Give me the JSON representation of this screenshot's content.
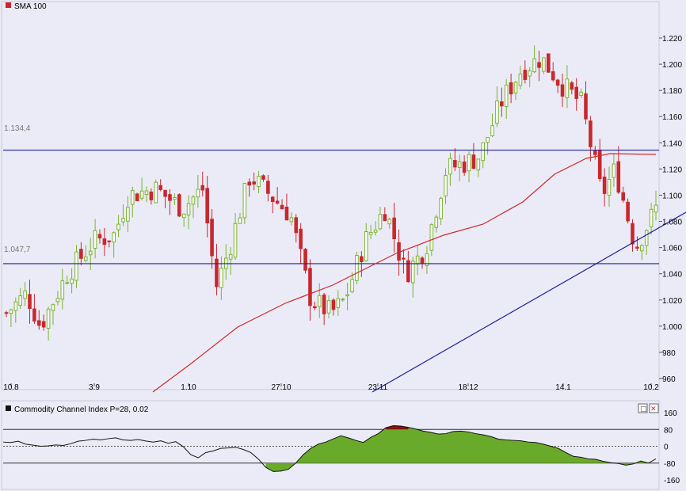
{
  "main_chart": {
    "legend_label": "SMA 100",
    "colors": {
      "up": "#7ab32e",
      "down": "#c8282d",
      "sma": "#cc2a2a",
      "hline": "#1f1f99",
      "trend": "#1f1f99",
      "background": "#ebebf7"
    }
  },
  "cci_panel": {
    "legend_label": "Commodity Channel Index P=28, 0.02",
    "expand_icon_label": "□",
    "close_icon_label": "✕",
    "ticks": [
      "160",
      "80",
      "0",
      "-80",
      "-160"
    ]
  },
  "chart_data": [
    {
      "type": "candlestick",
      "title": "",
      "series": [
        {
          "name": "SMA 100",
          "kind": "line"
        }
      ],
      "x_ticks": [
        "10.8",
        "3.9",
        "1.10",
        "27.10",
        "23.11",
        "18.12",
        "14.1",
        "10.2"
      ],
      "y_ticks": [
        "1.220",
        "1.200",
        "1.180",
        "1.160",
        "1.140",
        "1.120",
        "1.100",
        "1.080",
        "1.060",
        "1.040",
        "1.020",
        "1.000",
        "980",
        "960"
      ],
      "ylim": [
        0.96,
        1.225
      ],
      "horizontal_lines": [
        {
          "label": "1.134,4",
          "value": 1.1344
        },
        {
          "label": "1.047,7",
          "value": 1.0477
        }
      ],
      "trendline": {
        "from": {
          "x": "23.11",
          "y": 0.955
        },
        "to": {
          "x": "10.2",
          "y": 1.056
        }
      },
      "sma_range": [
        0.955,
        1.1027
      ],
      "candles_summary": {
        "count": 140,
        "first_close": 1.01,
        "min_low": 0.976,
        "max_high": 1.215,
        "last_close": 1.092
      }
    },
    {
      "type": "line",
      "title": "",
      "series": [
        {
          "name": "Commodity Channel Index P=28, 0.02"
        }
      ],
      "y_ticks": [
        "160",
        "80",
        "0",
        "-80",
        "-160"
      ],
      "ylim": [
        -160,
        160
      ],
      "levels": [
        80,
        0,
        -80
      ]
    }
  ]
}
